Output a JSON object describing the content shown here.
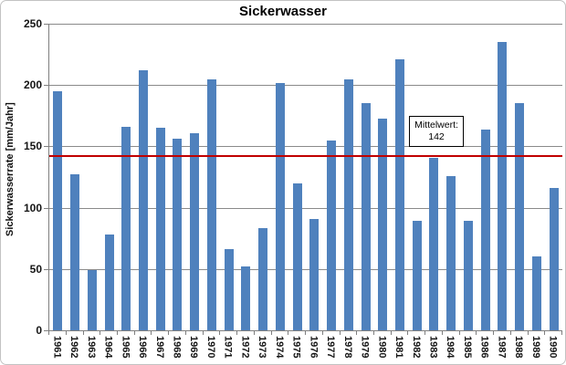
{
  "chart": {
    "title": "Sickerwasser",
    "y_axis_title": "Sickerwasserrate [mm/Jahr]",
    "annotation": {
      "label": "Mittelwert:",
      "value": "142"
    },
    "colors": {
      "bar": "#4f81bd",
      "mean_line": "#c00000",
      "gridline": "#8a8a8a",
      "axis": "#7f7f7f"
    }
  },
  "chart_data": {
    "type": "bar",
    "title": "Sickerwasser",
    "xlabel": "",
    "ylabel": "Sickerwasserrate [mm/Jahr]",
    "ylim": [
      0,
      250
    ],
    "y_ticks": [
      250,
      200,
      150,
      100,
      50,
      0
    ],
    "grid": true,
    "legend": false,
    "mean_line": 142,
    "annotation_text": [
      "Mittelwert:",
      "142"
    ],
    "categories": [
      "1961",
      "1962",
      "1963",
      "1964",
      "1965",
      "1966",
      "1967",
      "1968",
      "1969",
      "1970",
      "1971",
      "1972",
      "1973",
      "1974",
      "1975",
      "1976",
      "1977",
      "1978",
      "1979",
      "1980",
      "1981",
      "1982",
      "1983",
      "1984",
      "1985",
      "1986",
      "1987",
      "1988",
      "1989",
      "1990"
    ],
    "values": [
      195,
      127,
      49,
      78,
      166,
      212,
      165,
      156,
      161,
      205,
      66,
      52,
      83,
      202,
      120,
      91,
      155,
      205,
      185,
      173,
      221,
      89,
      141,
      126,
      89,
      164,
      235,
      185,
      60,
      116
    ]
  }
}
